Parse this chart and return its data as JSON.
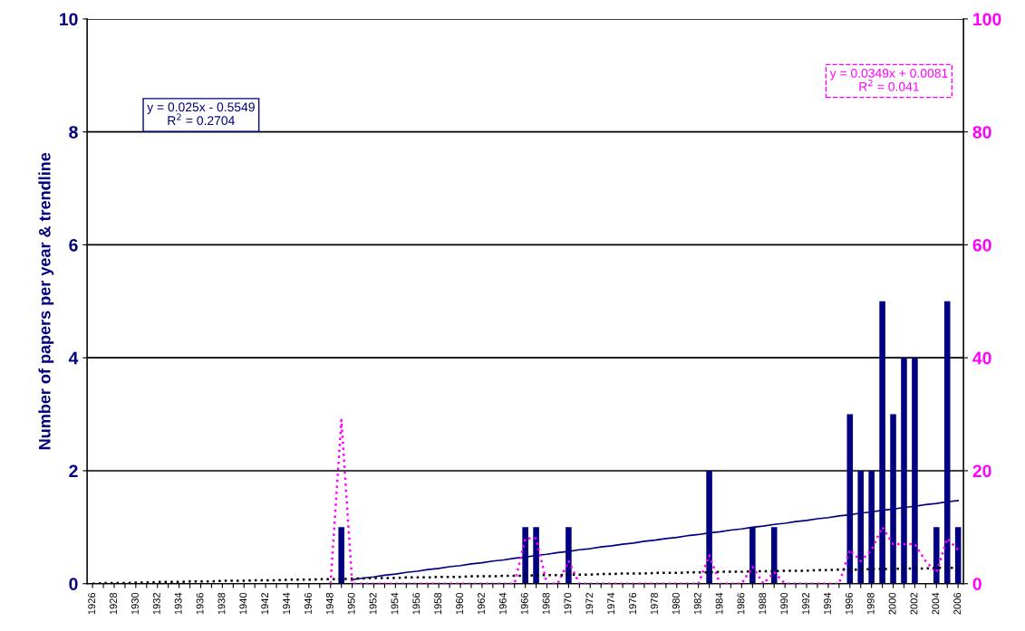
{
  "chart_data": {
    "type": "bar",
    "ylabel": "Number of papers per year & trendline",
    "categories": [
      "1926",
      null,
      "1928",
      null,
      "1930",
      null,
      "1932",
      null,
      "1934",
      null,
      "1936",
      null,
      "1938",
      null,
      "1940",
      null,
      "1942",
      null,
      "1944",
      null,
      "1946",
      null,
      "1948",
      null,
      "1950",
      null,
      "1952",
      null,
      "1954",
      null,
      "1956",
      null,
      "1958",
      null,
      "1960",
      null,
      "1962",
      null,
      "1964",
      null,
      "1966",
      null,
      "1968",
      null,
      "1970",
      null,
      "1972",
      null,
      "1974",
      null,
      "1976",
      null,
      "1978",
      null,
      "1980",
      null,
      "1982",
      null,
      "1984",
      null,
      "1986",
      null,
      "1988",
      null,
      "1990",
      null,
      "1992",
      null,
      "1994",
      null,
      "1996",
      null,
      "1998",
      null,
      "2000",
      null,
      "2002",
      null,
      "2004",
      null,
      "2006"
    ],
    "series": [
      {
        "color": "#000080",
        "values": [
          0,
          0,
          0,
          0,
          0,
          0,
          0,
          0,
          0,
          0,
          0,
          0,
          0,
          0,
          0,
          0,
          0,
          0,
          0,
          0,
          0,
          0,
          0,
          1,
          0,
          0,
          0,
          0,
          0,
          0,
          0,
          0,
          0,
          0,
          0,
          0,
          0,
          0,
          0,
          0,
          1,
          1,
          0,
          0,
          1,
          0,
          0,
          0,
          0,
          0,
          0,
          0,
          0,
          0,
          0,
          0,
          0,
          2,
          0,
          0,
          0,
          1,
          0,
          1,
          0,
          0,
          0,
          0,
          0,
          0,
          3,
          2,
          2,
          5,
          3,
          4,
          4,
          0,
          1,
          5,
          1
        ]
      },
      {
        "type": "line",
        "axis": "y2",
        "color": "#ff00ff",
        "line_style": "dotted",
        "values": [
          null,
          null,
          null,
          null,
          null,
          null,
          null,
          null,
          null,
          null,
          null,
          null,
          null,
          null,
          null,
          null,
          null,
          null,
          null,
          null,
          null,
          null,
          0,
          29,
          0,
          0,
          0,
          0,
          0,
          0,
          0,
          0,
          0,
          0,
          0,
          0,
          0,
          0,
          0,
          0,
          8,
          8,
          0,
          0,
          4,
          0,
          0,
          0,
          0,
          0,
          0,
          0,
          0,
          0,
          0,
          0,
          0,
          5,
          0,
          0,
          0,
          3,
          0,
          2,
          0,
          0,
          0,
          0,
          0,
          0,
          6,
          4,
          6,
          10,
          7,
          7,
          7,
          4,
          2,
          8,
          6
        ]
      },
      {
        "type": "line",
        "color": "#000080",
        "line_style": "solid",
        "values": [
          null,
          null,
          null,
          null,
          null,
          null,
          null,
          null,
          null,
          null,
          null,
          null,
          null,
          null,
          null,
          null,
          null,
          null,
          null,
          null,
          null,
          null,
          null,
          null,
          0.07,
          0.1,
          0.12,
          0.15,
          0.17,
          0.2,
          0.22,
          0.25,
          0.27,
          0.3,
          0.32,
          0.35,
          0.37,
          0.4,
          0.42,
          0.45,
          0.47,
          0.5,
          0.52,
          0.55,
          0.57,
          0.6,
          0.62,
          0.65,
          0.67,
          0.7,
          0.72,
          0.75,
          0.77,
          0.8,
          0.82,
          0.85,
          0.87,
          0.9,
          0.92,
          0.95,
          0.97,
          1.0,
          1.02,
          1.05,
          1.07,
          1.1,
          1.12,
          1.15,
          1.17,
          1.2,
          1.22,
          1.25,
          1.27,
          1.3,
          1.32,
          1.35,
          1.37,
          1.4,
          1.42,
          1.45,
          1.47
        ]
      },
      {
        "type": "line",
        "axis": "y2",
        "color": "#000000",
        "line_style": "dotted",
        "values": [
          0.0,
          0.1,
          0.1,
          0.1,
          0.2,
          0.2,
          0.3,
          0.3,
          0.3,
          0.4,
          0.4,
          0.4,
          0.5,
          0.5,
          0.5,
          0.6,
          0.6,
          0.6,
          0.7,
          0.7,
          0.7,
          0.8,
          0.8,
          0.8,
          0.9,
          0.9,
          1.0,
          1.0,
          1.0,
          1.1,
          1.1,
          1.1,
          1.2,
          1.2,
          1.2,
          1.3,
          1.3,
          1.3,
          1.4,
          1.4,
          1.4,
          1.5,
          1.5,
          1.5,
          1.6,
          1.6,
          1.6,
          1.7,
          1.7,
          1.8,
          1.8,
          1.8,
          1.9,
          1.9,
          1.9,
          2.0,
          2.0,
          2.0,
          2.1,
          2.1,
          2.1,
          2.2,
          2.2,
          2.2,
          2.3,
          2.3,
          2.3,
          2.4,
          2.4,
          2.5,
          2.5,
          2.5,
          2.6,
          2.6,
          2.6,
          2.7,
          2.7,
          2.7,
          2.8,
          2.8,
          2.8
        ]
      }
    ],
    "ylim": [
      0,
      10
    ],
    "yticks": [
      0,
      2,
      4,
      6,
      8,
      10
    ],
    "y2lim": [
      0,
      100
    ],
    "y2ticks": [
      0,
      20,
      40,
      60,
      80,
      100
    ],
    "grid": "y",
    "legend": false,
    "annotations": [
      "y = 0.025x - 0.5549\nR$^{2}$ = 0.2704",
      "y = 0.0349x + 0.0081\nR$^{2}$ = 0.041"
    ]
  }
}
